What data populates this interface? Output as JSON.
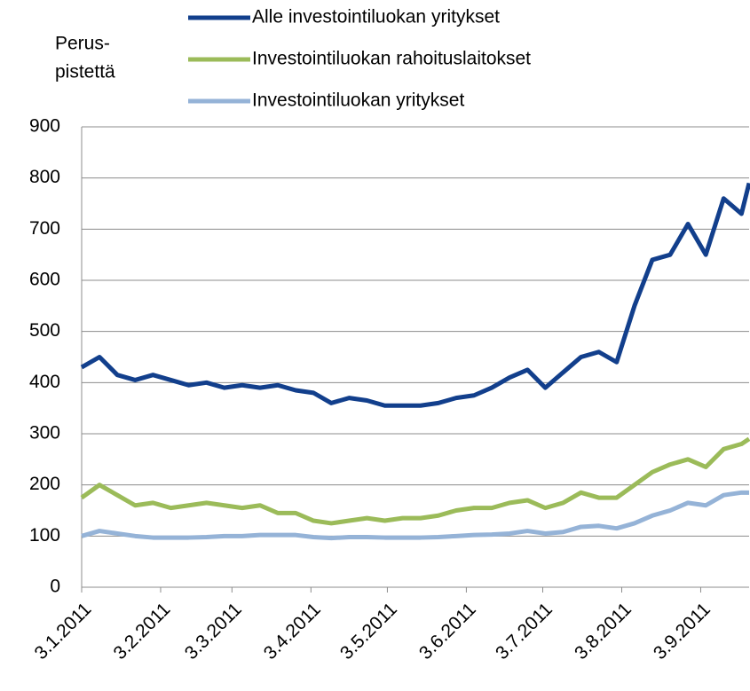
{
  "chart_data": {
    "type": "line",
    "ylabel": [
      "Perus-",
      "pistettä"
    ],
    "x": [
      "3.1.2011",
      "10.1.2011",
      "17.1.2011",
      "24.1.2011",
      "31.1.2011",
      "7.2.2011",
      "14.2.2011",
      "21.2.2011",
      "28.2.2011",
      "7.3.2011",
      "14.3.2011",
      "21.3.2011",
      "28.3.2011",
      "4.4.2011",
      "11.4.2011",
      "18.4.2011",
      "25.4.2011",
      "2.5.2011",
      "9.5.2011",
      "16.5.2011",
      "23.5.2011",
      "30.5.2011",
      "6.6.2011",
      "13.6.2011",
      "20.6.2011",
      "27.6.2011",
      "4.7.2011",
      "11.7.2011",
      "18.7.2011",
      "25.7.2011",
      "1.8.2011",
      "8.8.2011",
      "15.8.2011",
      "22.8.2011",
      "29.8.2011",
      "5.9.2011",
      "12.9.2011",
      "19.9.2011",
      "22.9.2011"
    ],
    "series": [
      {
        "name": "Alle investointiluokan yritykset",
        "color": "#123f8c",
        "values": [
          430,
          450,
          415,
          405,
          415,
          405,
          395,
          400,
          390,
          395,
          390,
          395,
          385,
          380,
          360,
          370,
          365,
          355,
          355,
          355,
          360,
          370,
          375,
          390,
          410,
          425,
          390,
          420,
          450,
          460,
          440,
          550,
          640,
          650,
          710,
          650,
          760,
          730,
          790
        ]
      },
      {
        "name": "Investointiluokan rahoituslaitokset",
        "color": "#9bbb59",
        "values": [
          175,
          200,
          180,
          160,
          165,
          155,
          160,
          165,
          160,
          155,
          160,
          145,
          145,
          130,
          125,
          130,
          135,
          130,
          135,
          135,
          140,
          150,
          155,
          155,
          165,
          170,
          155,
          165,
          185,
          175,
          175,
          200,
          225,
          240,
          250,
          235,
          270,
          280,
          290
        ]
      },
      {
        "name": "Investointiluokan yritykset",
        "color": "#95b3d7",
        "values": [
          100,
          110,
          105,
          100,
          97,
          97,
          97,
          98,
          100,
          100,
          102,
          102,
          102,
          98,
          96,
          98,
          98,
          97,
          97,
          97,
          98,
          100,
          102,
          103,
          105,
          110,
          105,
          108,
          118,
          120,
          115,
          125,
          140,
          150,
          165,
          160,
          180,
          185,
          185
        ]
      }
    ],
    "xlim": [
      "3.1.2011",
      "22.9.2011"
    ],
    "xticks": [
      "3.1.2011",
      "3.2.2011",
      "3.3.2011",
      "3.4.2011",
      "3.5.2011",
      "3.6.2011",
      "3.7.2011",
      "3.8.2011",
      "3.9.2011"
    ],
    "ylim": [
      0,
      900
    ],
    "yticks": [
      0,
      100,
      200,
      300,
      400,
      500,
      600,
      700,
      800,
      900
    ],
    "grid": true
  }
}
